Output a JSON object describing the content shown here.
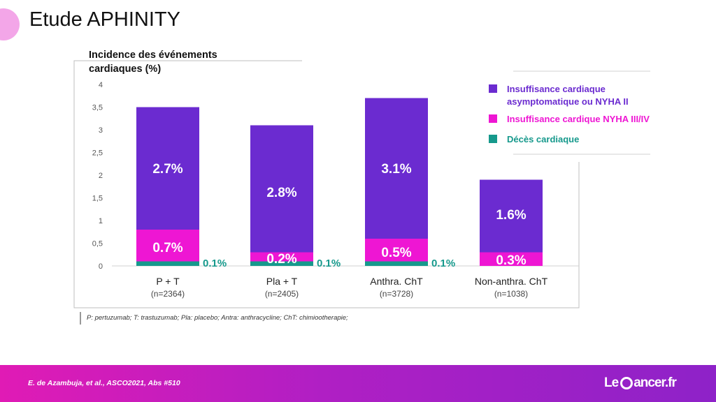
{
  "slide": {
    "title": "Etude APHINITY",
    "footnote": "P: pertuzumab; T: trastuzumab; Pla: placebo; Antra: anthracycline;  ChT: chimiootherapie;",
    "reference": "E. de Azambuja, et al.,  ASCO2021, Abs #510",
    "logo_left": "Le",
    "logo_right": "ancer.fr"
  },
  "colors": {
    "asymptomatic": "#6b2bd0",
    "nyha34": "#ee16d3",
    "death": "#16998c",
    "footer": "#a21fc6"
  },
  "chart_data": {
    "type": "bar",
    "ylabel": "Incidence des événements cardiaques (%)",
    "ylim": [
      0,
      4
    ],
    "yticks": [
      "0",
      "0,5",
      "1",
      "1,5",
      "2",
      "2,5",
      "3",
      "3,5",
      "4"
    ],
    "grid": false,
    "legend_position": "top-right",
    "categories": [
      {
        "label": "P + T",
        "sub": "(n=2364)"
      },
      {
        "label": "Pla + T",
        "sub": "(n=2405)"
      },
      {
        "label": "Anthra.  ChT",
        "sub": "(n=3728)"
      },
      {
        "label": "Non-anthra.  ChT",
        "sub": "(n=1038)"
      }
    ],
    "series": [
      {
        "name": "Décès cardiaque",
        "key": "death",
        "values": [
          0.1,
          0.1,
          0.1,
          0
        ]
      },
      {
        "name": "Insuffisance cardique NYHA  III/IV",
        "key": "nyha34",
        "values": [
          0.7,
          0.2,
          0.5,
          0.3
        ]
      },
      {
        "name": "Insuffisance cardiaque asymptomatique ou NYHA II",
        "key": "asymptomatic",
        "values": [
          2.7,
          2.8,
          3.1,
          1.6
        ]
      }
    ],
    "stack_totals": [
      3.5,
      3.1,
      3.7,
      1.9
    ],
    "data_labels": {
      "asymptomatic": [
        "2.7%",
        "2.8%",
        "3.1%",
        "1.6%"
      ],
      "nyha34": [
        "0.7%",
        "0.2%",
        "0.5%",
        "0.3%"
      ],
      "death": [
        "0.1%",
        "0.1%",
        "0.1%",
        ""
      ]
    },
    "legend": [
      {
        "key": "asymptomatic",
        "lines": [
          "Insuffisance cardiaque",
          "asymptomatique ou NYHA II"
        ]
      },
      {
        "key": "nyha34",
        "lines": [
          "Insuffisance cardique NYHA  III/IV"
        ]
      },
      {
        "key": "death",
        "lines": [
          "Décès cardiaque"
        ]
      }
    ]
  }
}
